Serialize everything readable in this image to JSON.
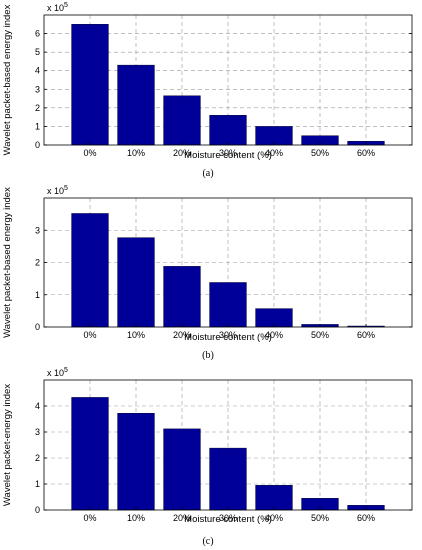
{
  "chart_data": [
    {
      "type": "bar",
      "panel_label": "(a)",
      "categories": [
        "0%",
        "10%",
        "20%",
        "30%",
        "40%",
        "50%",
        "60%"
      ],
      "values": [
        6.5,
        4.3,
        2.65,
        1.6,
        1.0,
        0.5,
        0.2
      ],
      "xlabel": "Moisture content (%)",
      "ylabel": "Wavelet packet-based energy index",
      "ylim": [
        0,
        7
      ],
      "yticks": [
        "0",
        "1",
        "2",
        "3",
        "4",
        "5",
        "6"
      ],
      "exponent_label": "x 10",
      "exponent_power": "5",
      "bar_color": "#000099",
      "grid": true
    },
    {
      "type": "bar",
      "panel_label": "(b)",
      "categories": [
        "0%",
        "10%",
        "20%",
        "30%",
        "40%",
        "50%",
        "60%"
      ],
      "values": [
        3.52,
        2.77,
        1.88,
        1.38,
        0.57,
        0.08,
        0.03
      ],
      "xlabel": "Moisture content (%)",
      "ylabel": "Wavelet  packet-based energy index",
      "ylim": [
        0,
        4
      ],
      "yticks": [
        "0",
        "1",
        "2",
        "3"
      ],
      "exponent_label": "x 10",
      "exponent_power": "5",
      "bar_color": "#000099",
      "grid": true
    },
    {
      "type": "bar",
      "panel_label": "(c)",
      "categories": [
        "0%",
        "10%",
        "20%",
        "30%",
        "40%",
        "50%",
        "60%"
      ],
      "values": [
        4.33,
        3.72,
        3.12,
        2.38,
        0.95,
        0.45,
        0.18
      ],
      "xlabel": "Moisture content (%)",
      "ylabel": "Wavelet packet-energy index",
      "ylim": [
        0,
        5
      ],
      "yticks": [
        "0",
        "1",
        "2",
        "3",
        "4"
      ],
      "exponent_label": "x 10",
      "exponent_power": "5",
      "bar_color": "#000099",
      "grid": true
    }
  ]
}
